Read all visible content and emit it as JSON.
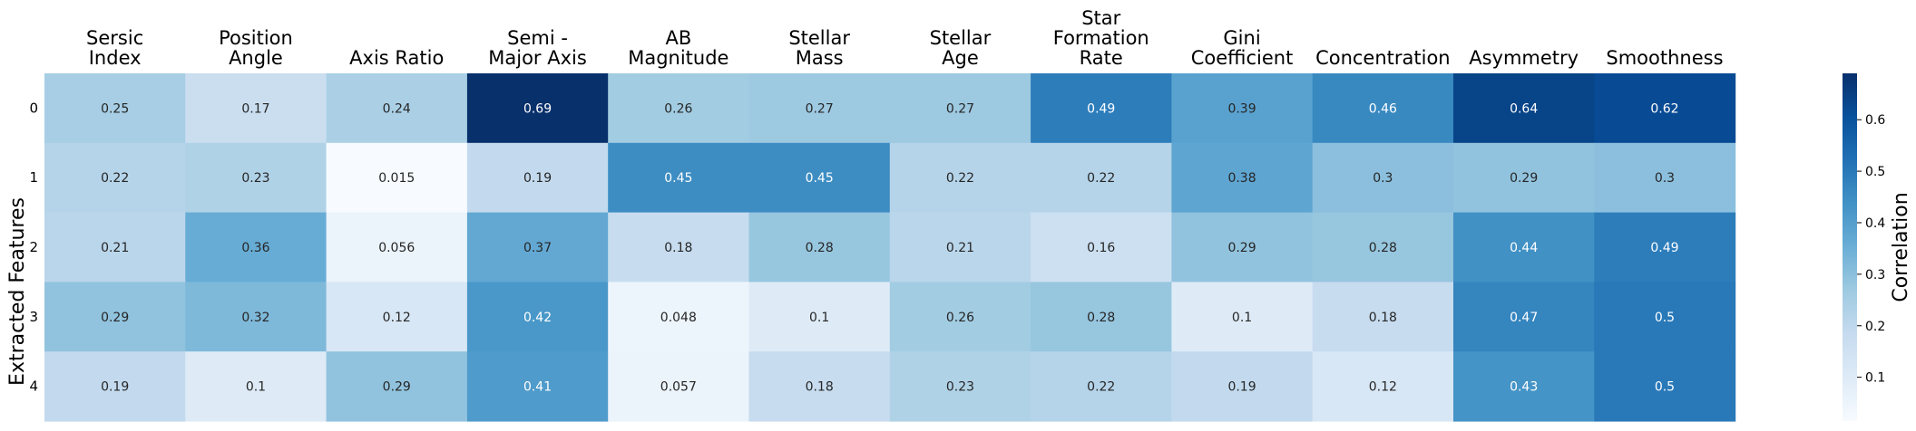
{
  "chart_data": {
    "type": "heatmap",
    "columns": [
      [
        "Sersic",
        "Index"
      ],
      [
        "Position",
        "Angle"
      ],
      [
        "Axis Ratio"
      ],
      [
        "Semi -",
        "Major Axis"
      ],
      [
        "AB",
        "Magnitude"
      ],
      [
        "Stellar",
        "Mass"
      ],
      [
        "Stellar",
        "Age"
      ],
      [
        "Star",
        "Formation",
        "Rate"
      ],
      [
        "Gini",
        "Coefficient"
      ],
      [
        "Concentration"
      ],
      [
        "Asymmetry"
      ],
      [
        "Smoothness"
      ]
    ],
    "rows": [
      "0",
      "1",
      "2",
      "3",
      "4"
    ],
    "ylabel": "Extracted Features",
    "values": [
      [
        0.25,
        0.17,
        0.24,
        0.69,
        0.26,
        0.27,
        0.27,
        0.49,
        0.39,
        0.46,
        0.64,
        0.62
      ],
      [
        0.22,
        0.23,
        0.015,
        0.19,
        0.45,
        0.45,
        0.22,
        0.22,
        0.38,
        0.3,
        0.29,
        0.3
      ],
      [
        0.21,
        0.36,
        0.056,
        0.37,
        0.18,
        0.28,
        0.21,
        0.16,
        0.29,
        0.28,
        0.44,
        0.49
      ],
      [
        0.29,
        0.32,
        0.12,
        0.42,
        0.048,
        0.1,
        0.26,
        0.28,
        0.1,
        0.18,
        0.47,
        0.5
      ],
      [
        0.19,
        0.1,
        0.29,
        0.41,
        0.057,
        0.18,
        0.23,
        0.22,
        0.19,
        0.12,
        0.43,
        0.5
      ]
    ],
    "colorbar": {
      "label": "Correlation",
      "ticks": [
        "0.1",
        "0.2",
        "0.3",
        "0.4",
        "0.5",
        "0.6"
      ],
      "range": [
        0.015,
        0.69
      ],
      "colormap": [
        "#f7fbff",
        "#deebf7",
        "#c6dbef",
        "#9ecae1",
        "#6baed6",
        "#4292c6",
        "#2171b5",
        "#08519c",
        "#08306b"
      ]
    }
  }
}
